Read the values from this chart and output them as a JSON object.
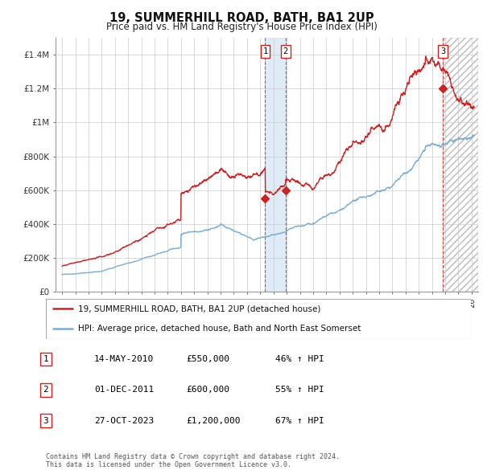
{
  "title": "19, SUMMERHILL ROAD, BATH, BA1 2UP",
  "subtitle": "Price paid vs. HM Land Registry's House Price Index (HPI)",
  "ylabel_ticks": [
    "£0",
    "£200K",
    "£400K",
    "£600K",
    "£800K",
    "£1M",
    "£1.2M",
    "£1.4M"
  ],
  "ytick_values": [
    0,
    200000,
    400000,
    600000,
    800000,
    1000000,
    1200000,
    1400000
  ],
  "ylim": [
    0,
    1500000
  ],
  "xlim_start": 1994.5,
  "xlim_end": 2026.5,
  "sale_color": "#cc2222",
  "hpi_color": "#7aadd4",
  "vline_color": "#cc2222",
  "shade_color": "#d0e4f5",
  "hatch_color": "#cccccc",
  "transactions": [
    {
      "date": 2010.37,
      "price": 550000,
      "label": "1",
      "pct": "46%"
    },
    {
      "date": 2011.92,
      "price": 600000,
      "label": "2",
      "pct": "55%"
    },
    {
      "date": 2023.82,
      "price": 1200000,
      "label": "3",
      "pct": "67%"
    }
  ],
  "legend_sale_label": "19, SUMMERHILL ROAD, BATH, BA1 2UP (detached house)",
  "legend_hpi_label": "HPI: Average price, detached house, Bath and North East Somerset",
  "table_rows": [
    [
      "1",
      "14-MAY-2010",
      "£550,000",
      "46% ↑ HPI"
    ],
    [
      "2",
      "01-DEC-2011",
      "£600,000",
      "55% ↑ HPI"
    ],
    [
      "3",
      "27-OCT-2023",
      "£1,200,000",
      "67% ↑ HPI"
    ]
  ],
  "footer": "Contains HM Land Registry data © Crown copyright and database right 2024.\nThis data is licensed under the Open Government Licence v3.0.",
  "background_color": "#ffffff",
  "grid_color": "#cccccc"
}
